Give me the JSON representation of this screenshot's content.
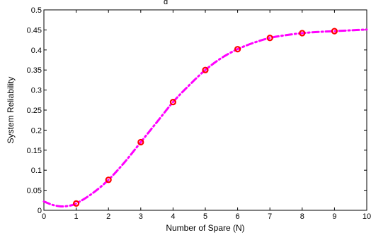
{
  "chart_data": {
    "type": "line",
    "title": "d",
    "xlabel": "Number of Spare (N)",
    "ylabel": "System Reliability",
    "xlim": [
      0,
      10
    ],
    "ylim": [
      0,
      0.5
    ],
    "x_ticks": [
      0,
      1,
      2,
      3,
      4,
      5,
      6,
      7,
      8,
      9,
      10
    ],
    "y_ticks": [
      0,
      0.05,
      0.1,
      0.15,
      0.2,
      0.25,
      0.3,
      0.35,
      0.4,
      0.45,
      0.5
    ],
    "x_tick_labels": [
      "0",
      "1",
      "2",
      "3",
      "4",
      "5",
      "6",
      "7",
      "8",
      "9",
      "10"
    ],
    "y_tick_labels": [
      "0",
      "0.05",
      "0.1",
      "0.15",
      "0.2",
      "0.25",
      "0.3",
      "0.35",
      "0.4",
      "0.45",
      "0.5"
    ],
    "grid": false,
    "series": [
      {
        "style": "dash-dot line",
        "color": "#ff00ff",
        "x": [
          0,
          0.25,
          0.5,
          0.75,
          1,
          1.5,
          2,
          2.5,
          3,
          3.5,
          4,
          4.5,
          5,
          5.5,
          6,
          6.5,
          7,
          7.5,
          8,
          8.5,
          9,
          9.5,
          10
        ],
        "y": [
          0.022,
          0.014,
          0.01,
          0.011,
          0.017,
          0.042,
          0.076,
          0.12,
          0.17,
          0.22,
          0.27,
          0.312,
          0.35,
          0.38,
          0.402,
          0.418,
          0.43,
          0.437,
          0.442,
          0.445,
          0.447,
          0.449,
          0.451
        ]
      },
      {
        "style": "circle markers",
        "color": "#ff0000",
        "x": [
          1,
          2,
          3,
          4,
          5,
          6,
          7,
          8,
          9
        ],
        "y": [
          0.017,
          0.076,
          0.17,
          0.27,
          0.35,
          0.402,
          0.43,
          0.442,
          0.447
        ]
      }
    ]
  }
}
